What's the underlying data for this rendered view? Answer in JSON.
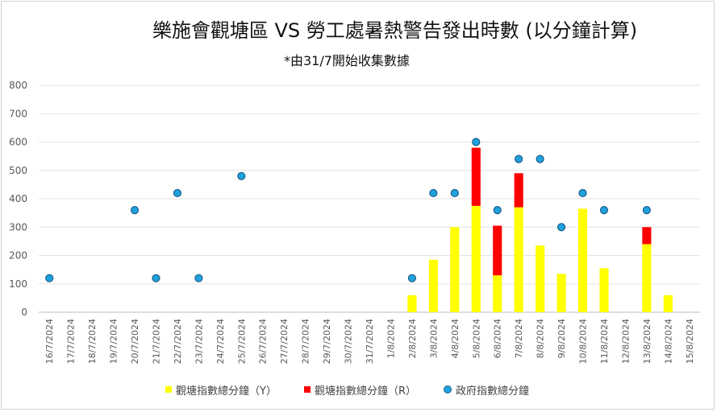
{
  "chart_data": {
    "type": "bar",
    "title": "樂施會觀塘區 VS 勞工處暑熱警告發出時數 (以分鐘計算)",
    "subtitle": "*由31/7開始收集數據",
    "xlabel": "",
    "ylabel": "",
    "ylim": [
      0,
      800
    ],
    "yticks": [
      0,
      100,
      200,
      300,
      400,
      500,
      600,
      700,
      800
    ],
    "grid": true,
    "legend_position": "bottom",
    "categories": [
      "16/7/2024",
      "17/7/2024",
      "18/7/2024",
      "19/7/2024",
      "20/7/2024",
      "21/7/2024",
      "22/7/2024",
      "23/7/2024",
      "24/7/2024",
      "25/7/2024",
      "26/7/2024",
      "27/7/2024",
      "28/7/2024",
      "29/7/2024",
      "30/7/2024",
      "31/7/2024",
      "1/8/2024",
      "2/8/2024",
      "3/8/2024",
      "4/8/2024",
      "5/8/2024",
      "6/8/2024",
      "7/8/2024",
      "8/8/2024",
      "9/8/2024",
      "10/8/2024",
      "11/8/2024",
      "12/8/2024",
      "13/8/2024",
      "14/8/2024",
      "15/8/2024"
    ],
    "series": [
      {
        "name": "觀塘指數總分鐘（Y）",
        "kind": "stacked-bar",
        "color": "#ffff00",
        "values": [
          0,
          0,
          0,
          0,
          0,
          0,
          0,
          0,
          0,
          0,
          0,
          0,
          0,
          0,
          0,
          0,
          0,
          60,
          185,
          300,
          375,
          130,
          370,
          235,
          135,
          365,
          155,
          0,
          240,
          60,
          0
        ]
      },
      {
        "name": "觀塘指數總分鐘（R）",
        "kind": "stacked-bar",
        "color": "#ff0000",
        "values": [
          0,
          0,
          0,
          0,
          0,
          0,
          0,
          0,
          0,
          0,
          0,
          0,
          0,
          0,
          0,
          0,
          0,
          0,
          0,
          0,
          205,
          175,
          120,
          0,
          0,
          0,
          0,
          0,
          60,
          0,
          0
        ]
      },
      {
        "name": "政府指數總分鐘",
        "kind": "scatter",
        "color": "#1fa2dd",
        "values": [
          120,
          null,
          null,
          null,
          360,
          120,
          420,
          120,
          null,
          480,
          null,
          null,
          null,
          null,
          null,
          null,
          null,
          120,
          420,
          420,
          600,
          360,
          540,
          540,
          300,
          420,
          360,
          null,
          360,
          null,
          null
        ]
      }
    ]
  }
}
